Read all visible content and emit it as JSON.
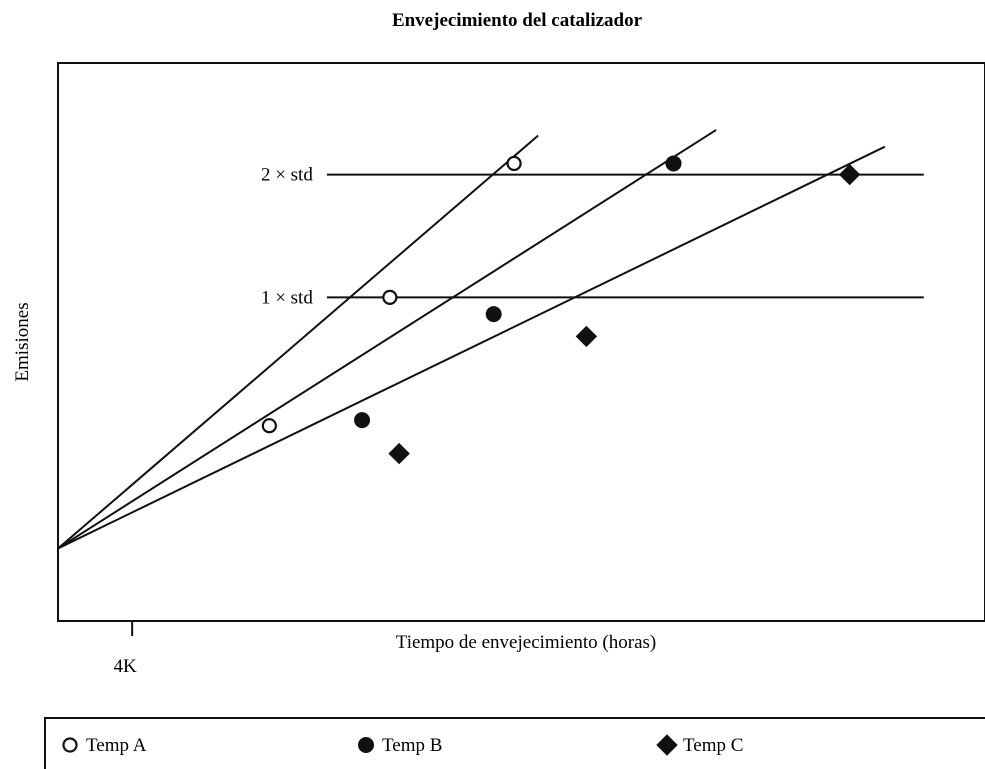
{
  "chart_data": {
    "type": "line",
    "title": "Envejecimiento del catalizador",
    "xlabel": "Tiempo de envejecimiento (horas)",
    "ylabel": "Emisiones",
    "x_ticks": [
      {
        "label": "4K",
        "value": 4
      }
    ],
    "xlim": [
      0,
      50
    ],
    "ylim": [
      0,
      10
    ],
    "grid": false,
    "legend_position": "bottom",
    "reference_lines": [
      {
        "label": "1 × std",
        "value": 5.8
      },
      {
        "label": "2 × std",
        "value": 8.0
      }
    ],
    "series": [
      {
        "name": "Temp A",
        "marker": "open-circle",
        "color": "#111111",
        "x": [
          11.4,
          17.9,
          24.6
        ],
        "y": [
          3.5,
          5.8,
          8.2
        ],
        "line_x": [
          0,
          25.9
        ],
        "line_y": [
          1.3,
          8.7
        ]
      },
      {
        "name": "Temp B",
        "marker": "filled-circle",
        "color": "#111111",
        "x": [
          16.4,
          23.5,
          33.2
        ],
        "y": [
          3.6,
          5.5,
          8.2
        ],
        "line_x": [
          0,
          35.5
        ],
        "line_y": [
          1.3,
          8.8
        ]
      },
      {
        "name": "Temp C",
        "marker": "filled-diamond",
        "color": "#111111",
        "x": [
          18.4,
          28.5,
          42.7
        ],
        "y": [
          3.0,
          5.1,
          8.0
        ],
        "line_x": [
          0,
          44.6
        ],
        "line_y": [
          1.3,
          8.5
        ]
      }
    ]
  }
}
